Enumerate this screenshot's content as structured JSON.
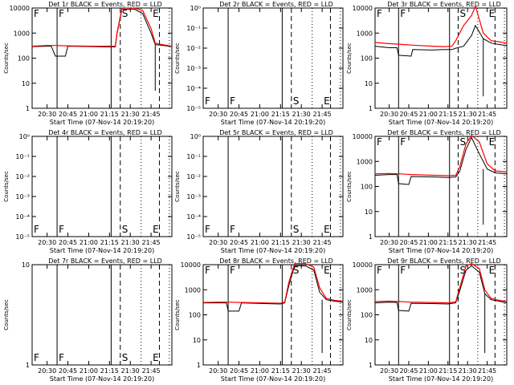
{
  "chart_data": [
    {
      "id": "det1",
      "title": "Det 1r BLACK = Events, RED = LLD",
      "type": "line",
      "ylabel": "Counts/sec",
      "xlabel": "Start Time (07-Nov-14 20:19:20)",
      "yscale": "log",
      "ylim": [
        1,
        10000
      ],
      "yticks": [
        "1",
        "10",
        "100",
        "1000",
        "10000"
      ],
      "xticks": [
        "20:30",
        "20:45",
        "21:00",
        "21:15",
        "21:30",
        "21:45"
      ],
      "markers": [
        "F",
        "S",
        "E"
      ],
      "has_data": true,
      "series": [
        {
          "name": "Events",
          "color": "#000000",
          "points": [
            [
              20.32,
              290
            ],
            [
              20.5,
              300
            ],
            [
              20.55,
              300
            ],
            [
              20.6,
              120
            ],
            [
              20.72,
              120
            ],
            [
              20.75,
              300
            ],
            [
              21.05,
              290
            ],
            [
              21.2,
              280
            ],
            [
              21.32,
              280
            ],
            [
              21.34,
              900
            ],
            [
              21.4,
              9000
            ],
            [
              21.55,
              9000
            ],
            [
              21.65,
              6000
            ],
            [
              21.75,
              1000
            ],
            [
              21.8,
              350
            ],
            [
              21.9,
              320
            ],
            [
              22.0,
              290
            ]
          ]
        },
        {
          "name": "LLD",
          "color": "#ff0000",
          "points": [
            [
              20.32,
              300
            ],
            [
              20.5,
              320
            ],
            [
              20.6,
              320
            ],
            [
              20.72,
              310
            ],
            [
              21.05,
              300
            ],
            [
              21.2,
              300
            ],
            [
              21.32,
              300
            ],
            [
              21.34,
              1000
            ],
            [
              21.4,
              10000
            ],
            [
              21.55,
              10000
            ],
            [
              21.65,
              8000
            ],
            [
              21.75,
              1500
            ],
            [
              21.8,
              400
            ],
            [
              21.9,
              340
            ],
            [
              22.0,
              300
            ]
          ]
        }
      ],
      "drop": {
        "x": 21.8,
        "low": 5
      }
    },
    {
      "id": "det2",
      "title": "Det 2r BLACK = Events, RED = LLD",
      "type": "line",
      "ylabel": "Counts/sec",
      "xlabel": "Start Time (07-Nov-14 20:19:20)",
      "yscale": "log",
      "ylim": [
        1,
        1e-06
      ],
      "yticks": [
        "10⁻⁵",
        "10⁻⁴",
        "10⁻³",
        "10⁻²",
        "10⁻¹",
        "10⁰"
      ],
      "xticks": [
        "20:30",
        "20:45",
        "21:00",
        "21:15",
        "21:30",
        "21:45"
      ],
      "markers": [
        "F",
        "S",
        "E"
      ],
      "has_data": false,
      "series": []
    },
    {
      "id": "det3",
      "title": "Det 3r BLACK = Events, RED = LLD",
      "type": "line",
      "ylabel": "Counts/sec",
      "xlabel": "Start Time (07-Nov-14 20:19:20)",
      "yscale": "log",
      "ylim": [
        1,
        10000
      ],
      "yticks": [
        "1",
        "10",
        "100",
        "1000",
        "10000"
      ],
      "xticks": [
        "20:30",
        "20:45",
        "21:00",
        "21:15",
        "21:30",
        "21:45"
      ],
      "markers": [
        "F",
        "S",
        "E"
      ],
      "has_data": true,
      "series": [
        {
          "name": "Events",
          "color": "#000000",
          "points": [
            [
              20.32,
              300
            ],
            [
              20.5,
              260
            ],
            [
              20.6,
              260
            ],
            [
              20.62,
              130
            ],
            [
              20.78,
              120
            ],
            [
              20.8,
              220
            ],
            [
              21.05,
              210
            ],
            [
              21.2,
              220
            ],
            [
              21.3,
              220
            ],
            [
              21.35,
              250
            ],
            [
              21.45,
              300
            ],
            [
              21.55,
              800
            ],
            [
              21.6,
              2000
            ],
            [
              21.7,
              600
            ],
            [
              21.8,
              400
            ],
            [
              21.9,
              350
            ],
            [
              22.0,
              320
            ]
          ]
        },
        {
          "name": "LLD",
          "color": "#ff0000",
          "points": [
            [
              20.32,
              420
            ],
            [
              20.5,
              380
            ],
            [
              20.62,
              360
            ],
            [
              20.8,
              330
            ],
            [
              21.05,
              300
            ],
            [
              21.2,
              290
            ],
            [
              21.3,
              300
            ],
            [
              21.35,
              500
            ],
            [
              21.45,
              2000
            ],
            [
              21.55,
              5000
            ],
            [
              21.6,
              12000
            ],
            [
              21.7,
              1000
            ],
            [
              21.8,
              500
            ],
            [
              21.9,
              450
            ],
            [
              22.0,
              400
            ]
          ]
        }
      ],
      "drop": {
        "x": 21.7,
        "low": 3
      }
    },
    {
      "id": "det4",
      "title": "Det 4r BLACK = Events, RED = LLD",
      "type": "line",
      "ylabel": "Counts/sec",
      "xlabel": "Start Time (07-Nov-14 20:19:20)",
      "yscale": "log",
      "ylim": [
        1,
        1e-06
      ],
      "yticks": [
        "10⁻⁵",
        "10⁻⁴",
        "10⁻³",
        "10⁻²",
        "10⁻¹",
        "10⁰"
      ],
      "xticks": [
        "20:30",
        "20:45",
        "21:00",
        "21:15",
        "21:30",
        "21:45"
      ],
      "markers": [
        "F",
        "S",
        "E"
      ],
      "has_data": false,
      "series": []
    },
    {
      "id": "det5",
      "title": "Det 5r BLACK = Events, RED = LLD",
      "type": "line",
      "ylabel": "Counts/sec",
      "xlabel": "Start Time (07-Nov-14 20:19:20)",
      "yscale": "log",
      "ylim": [
        1,
        1e-06
      ],
      "yticks": [
        "10⁻⁵",
        "10⁻⁴",
        "10⁻³",
        "10⁻²",
        "10⁻¹",
        "10⁰"
      ],
      "xticks": [
        "20:30",
        "20:45",
        "21:00",
        "21:15",
        "21:30",
        "21:45"
      ],
      "markers": [
        "F",
        "S",
        "E"
      ],
      "has_data": false,
      "series": []
    },
    {
      "id": "det6",
      "title": "Det 6r BLACK = Events, RED = LLD",
      "type": "line",
      "ylabel": "Counts/sec",
      "xlabel": "Start Time (07-Nov-14 20:19:20)",
      "yscale": "log",
      "ylim": [
        1,
        10000
      ],
      "yticks": [
        "1",
        "10",
        "100",
        "1000",
        "10000"
      ],
      "xticks": [
        "20:30",
        "20:45",
        "21:00",
        "21:15",
        "21:30",
        "21:45"
      ],
      "markers": [
        "F",
        "S",
        "E"
      ],
      "has_data": true,
      "series": [
        {
          "name": "Events",
          "color": "#000000",
          "points": [
            [
              20.32,
              280
            ],
            [
              20.5,
              300
            ],
            [
              20.6,
              300
            ],
            [
              20.62,
              130
            ],
            [
              20.75,
              120
            ],
            [
              20.78,
              250
            ],
            [
              21.05,
              240
            ],
            [
              21.25,
              230
            ],
            [
              21.35,
              240
            ],
            [
              21.4,
              400
            ],
            [
              21.48,
              3000
            ],
            [
              21.55,
              9000
            ],
            [
              21.65,
              2000
            ],
            [
              21.75,
              500
            ],
            [
              21.85,
              350
            ],
            [
              22.0,
              320
            ]
          ]
        },
        {
          "name": "LLD",
          "color": "#ff0000",
          "points": [
            [
              20.32,
              320
            ],
            [
              20.5,
              330
            ],
            [
              20.62,
              320
            ],
            [
              20.78,
              300
            ],
            [
              21.05,
              280
            ],
            [
              21.25,
              270
            ],
            [
              21.35,
              280
            ],
            [
              21.4,
              600
            ],
            [
              21.48,
              5000
            ],
            [
              21.55,
              11000
            ],
            [
              21.65,
              6000
            ],
            [
              21.75,
              800
            ],
            [
              21.85,
              420
            ],
            [
              22.0,
              380
            ]
          ]
        }
      ],
      "drop": {
        "x": 21.7,
        "low": 3
      }
    },
    {
      "id": "det7",
      "title": "Det 7r BLACK = Events, RED = LLD",
      "type": "line",
      "ylabel": "Counts/sec",
      "xlabel": "Start Time (07-Nov-14 20:19:20)",
      "yscale": "log",
      "ylim": [
        1,
        10
      ],
      "yticks": [
        "1",
        "10"
      ],
      "xticks": [
        "20:30",
        "20:45",
        "21:00",
        "21:15",
        "21:30",
        "21:45"
      ],
      "markers": [
        "F",
        "S",
        "E"
      ],
      "has_data": false,
      "series": []
    },
    {
      "id": "det8",
      "title": "Det 8r BLACK = Events, RED = LLD",
      "type": "line",
      "ylabel": "Counts/sec",
      "xlabel": "Start Time (07-Nov-14 20:19:20)",
      "yscale": "log",
      "ylim": [
        1,
        10000
      ],
      "yticks": [
        "1",
        "10",
        "100",
        "1000",
        "10000"
      ],
      "xticks": [
        "20:30",
        "20:45",
        "21:00",
        "21:15",
        "21:30",
        "21:45"
      ],
      "markers": [
        "F",
        "S",
        "E"
      ],
      "has_data": true,
      "series": [
        {
          "name": "Events",
          "color": "#000000",
          "points": [
            [
              20.32,
              300
            ],
            [
              20.5,
              300
            ],
            [
              20.6,
              300
            ],
            [
              20.62,
              140
            ],
            [
              20.75,
              140
            ],
            [
              20.78,
              300
            ],
            [
              21.05,
              280
            ],
            [
              21.25,
              270
            ],
            [
              21.3,
              300
            ],
            [
              21.35,
              1500
            ],
            [
              21.42,
              9000
            ],
            [
              21.55,
              9000
            ],
            [
              21.65,
              6000
            ],
            [
              21.72,
              800
            ],
            [
              21.8,
              400
            ],
            [
              21.9,
              350
            ],
            [
              22.0,
              320
            ]
          ]
        },
        {
          "name": "LLD",
          "color": "#ff0000",
          "points": [
            [
              20.32,
              310
            ],
            [
              20.5,
              320
            ],
            [
              20.62,
              320
            ],
            [
              20.78,
              310
            ],
            [
              21.05,
              300
            ],
            [
              21.25,
              290
            ],
            [
              21.3,
              320
            ],
            [
              21.35,
              2000
            ],
            [
              21.42,
              11000
            ],
            [
              21.55,
              11000
            ],
            [
              21.65,
              8000
            ],
            [
              21.72,
              1200
            ],
            [
              21.8,
              450
            ],
            [
              21.9,
              380
            ],
            [
              22.0,
              340
            ]
          ]
        }
      ],
      "drop": {
        "x": 21.75,
        "low": 3
      }
    },
    {
      "id": "det9",
      "title": "Det 9r BLACK = Events, RED = LLD",
      "type": "line",
      "ylabel": "Counts/sec",
      "xlabel": "Start Time (07-Nov-14 20:19:20)",
      "yscale": "log",
      "ylim": [
        1,
        10000
      ],
      "yticks": [
        "1",
        "10",
        "100",
        "1000",
        "10000"
      ],
      "xticks": [
        "20:30",
        "20:45",
        "21:00",
        "21:15",
        "21:30",
        "21:45"
      ],
      "markers": [
        "F",
        "S",
        "E"
      ],
      "has_data": true,
      "series": [
        {
          "name": "Events",
          "color": "#000000",
          "points": [
            [
              20.32,
              300
            ],
            [
              20.5,
              320
            ],
            [
              20.6,
              310
            ],
            [
              20.62,
              150
            ],
            [
              20.75,
              140
            ],
            [
              20.78,
              290
            ],
            [
              21.05,
              280
            ],
            [
              21.25,
              270
            ],
            [
              21.35,
              300
            ],
            [
              21.4,
              900
            ],
            [
              21.48,
              6000
            ],
            [
              21.55,
              9000
            ],
            [
              21.65,
              5000
            ],
            [
              21.72,
              700
            ],
            [
              21.8,
              400
            ],
            [
              21.9,
              350
            ],
            [
              22.0,
              300
            ]
          ]
        },
        {
          "name": "LLD",
          "color": "#ff0000",
          "points": [
            [
              20.32,
              340
            ],
            [
              20.5,
              350
            ],
            [
              20.62,
              340
            ],
            [
              20.78,
              320
            ],
            [
              21.05,
              310
            ],
            [
              21.25,
              300
            ],
            [
              21.35,
              330
            ],
            [
              21.4,
              1200
            ],
            [
              21.48,
              9000
            ],
            [
              21.55,
              11000
            ],
            [
              21.65,
              7000
            ],
            [
              21.72,
              1000
            ],
            [
              21.8,
              450
            ],
            [
              21.9,
              380
            ],
            [
              22.0,
              340
            ]
          ]
        }
      ],
      "drop": {
        "x": 21.72,
        "low": 3
      }
    }
  ]
}
